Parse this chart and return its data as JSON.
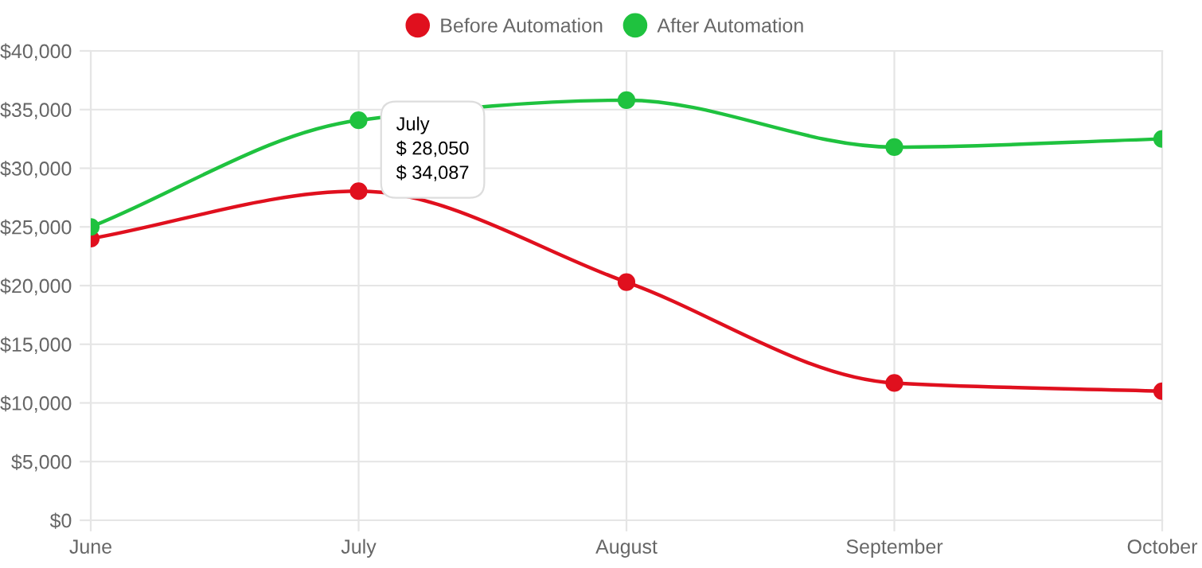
{
  "chart_data": {
    "type": "line",
    "categories": [
      "June",
      "July",
      "August",
      "September",
      "October"
    ],
    "series": [
      {
        "name": "Before Automation",
        "color": "#e0101e",
        "values": [
          24000,
          28050,
          20300,
          11700,
          11000
        ]
      },
      {
        "name": "After Automation",
        "color": "#1fc23f",
        "values": [
          25000,
          34087,
          35800,
          31800,
          32500
        ]
      }
    ],
    "ylim": [
      0,
      40000
    ],
    "yticks": [
      {
        "value": 0,
        "label": "$0"
      },
      {
        "value": 5000,
        "label": "$5,000"
      },
      {
        "value": 10000,
        "label": "$10,000"
      },
      {
        "value": 15000,
        "label": "$15,000"
      },
      {
        "value": 20000,
        "label": "$20,000"
      },
      {
        "value": 25000,
        "label": "$25,000"
      },
      {
        "value": 30000,
        "label": "$30,000"
      },
      {
        "value": 35000,
        "label": "$35,000"
      },
      {
        "value": 40000,
        "label": "$40,000"
      }
    ],
    "grid": true,
    "legend": "top",
    "marker": "circle",
    "line_style": "solid",
    "annotations": [
      "July",
      "$ 28,050",
      "$ 34,087"
    ]
  }
}
